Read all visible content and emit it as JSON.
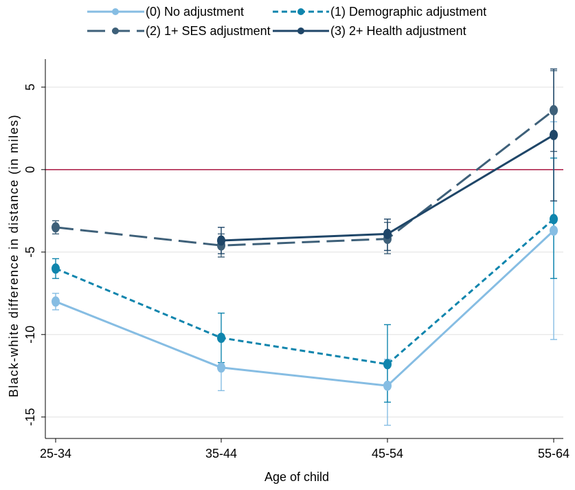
{
  "chart_data": {
    "type": "line",
    "title": "",
    "xlabel": "Age of child",
    "ylabel": "Black-white difference in distance (in miles)",
    "categories": [
      "25-34",
      "35-44",
      "45-54",
      "55-64"
    ],
    "ylim": [
      -16.3,
      6.7
    ],
    "yticks": [
      5,
      0,
      -5,
      -10,
      -15
    ],
    "ytick_labels": [
      "5",
      "0",
      "-5",
      "-10",
      "-15"
    ],
    "reference_line": {
      "y": 0,
      "color": "#b0284f"
    },
    "grid": true,
    "legend_position": "top",
    "series": [
      {
        "name": "(0) No adjustment",
        "color": "#86bde3",
        "dash": "solid",
        "values": [
          -8.0,
          -12.0,
          -13.1,
          -3.7
        ],
        "ci_low": [
          -8.5,
          -13.4,
          -15.5,
          -10.3
        ],
        "ci_high": [
          -7.5,
          -11.9,
          -11.5,
          2.9
        ]
      },
      {
        "name": "(1) Demographic adjustment",
        "color": "#0f85ad",
        "dash": "short",
        "values": [
          -6.0,
          -10.2,
          -11.8,
          -3.0
        ],
        "ci_low": [
          -6.6,
          -11.7,
          -14.1,
          -6.6
        ],
        "ci_high": [
          -5.4,
          -8.7,
          -9.4,
          0.7
        ]
      },
      {
        "name": "(2) 1+ SES adjustment",
        "color": "#3e6079",
        "dash": "long",
        "values": [
          -3.5,
          -4.6,
          -4.2,
          3.6
        ],
        "ci_low": [
          -3.9,
          -5.3,
          -5.1,
          1.1
        ],
        "ci_high": [
          -3.1,
          -3.9,
          -3.2,
          6.0
        ]
      },
      {
        "name": "(3) 2+ Health adjustment",
        "color": "#1f4668",
        "dash": "solid",
        "values": [
          null,
          -4.3,
          -3.9,
          2.1
        ],
        "ci_low": [
          null,
          -5.1,
          -4.9,
          -1.9
        ],
        "ci_high": [
          null,
          -3.5,
          -3.0,
          6.1
        ]
      }
    ]
  }
}
